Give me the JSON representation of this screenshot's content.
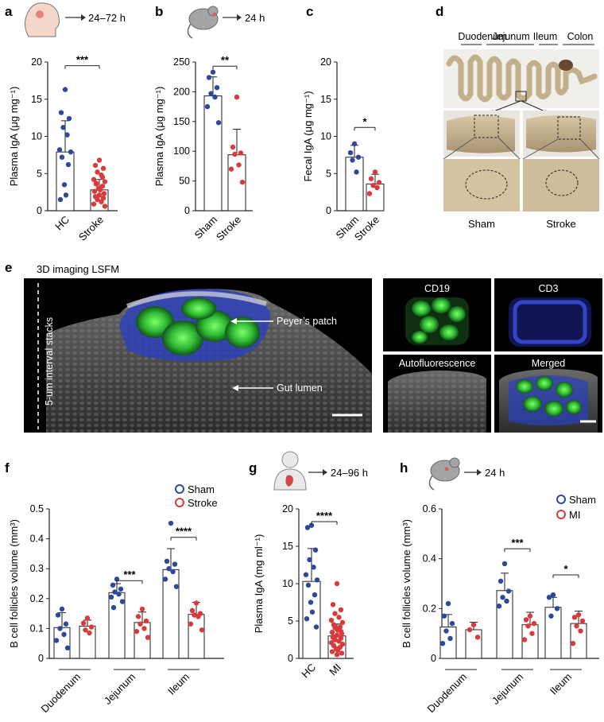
{
  "panel_letters": {
    "a": "a",
    "b": "b",
    "c": "c",
    "d": "d",
    "e": "e",
    "f": "f",
    "g": "g",
    "h": "h"
  },
  "headers": {
    "a": "24–72 h",
    "b": "24 h",
    "g": "24–96 h",
    "h": "24 h"
  },
  "colors": {
    "blue": "#2b4a9a",
    "red": "#d93a3a",
    "bar": "#222222"
  },
  "panel_d": {
    "segments": [
      "Duodenum",
      "Jejunum",
      "Ileum",
      "Colon"
    ],
    "sham": "Sham",
    "stroke": "Stroke"
  },
  "panel_e": {
    "main_title": "3D imaging LSFM",
    "stack_label": "5-um interval stacks",
    "pp_label": "Peyer’s patch",
    "lumen_label": "Gut lumen",
    "cd19": "CD19",
    "cd3": "CD3",
    "auto": "Autofluorescence",
    "merged": "Merged"
  },
  "legend_f": {
    "sham": "Sham",
    "stroke": "Stroke"
  },
  "legend_h": {
    "sham": "Sham",
    "mi": "MI"
  },
  "chart_data": [
    {
      "panel": "a",
      "type": "bar",
      "ylabel": "Plasma IgA (μg mg⁻¹)",
      "ylim": [
        0,
        20
      ],
      "yticks": [
        0,
        5,
        10,
        15,
        20
      ],
      "categories": [
        "HC",
        "Stroke"
      ],
      "means": [
        7.9,
        2.8
      ],
      "sd": [
        4.2,
        1.4
      ],
      "points": [
        [
          16.3,
          13.2,
          12.4,
          11.2,
          10.2,
          8.2,
          7.9,
          7.2,
          6.2,
          3.5,
          2.1,
          1.5
        ],
        [
          6.8,
          6.1,
          5.7,
          5.2,
          4.8,
          4.2,
          3.9,
          3.6,
          3.3,
          3.0,
          2.8,
          2.6,
          2.3,
          2.1,
          1.9,
          1.7,
          1.5,
          1.2,
          0.9,
          0.6,
          3.7,
          4.5
        ]
      ],
      "colors": [
        "blue",
        "red"
      ],
      "significance": [
        {
          "from": 0,
          "to": 1,
          "label": "***",
          "y": 19.5
        }
      ]
    },
    {
      "panel": "b",
      "type": "bar",
      "ylabel": "Plasma IgA (μg mg⁻¹)",
      "ylim": [
        0,
        250
      ],
      "yticks": [
        0,
        50,
        100,
        150,
        200,
        250
      ],
      "categories": [
        "Sham",
        "Stroke"
      ],
      "means": [
        193,
        94
      ],
      "sd": [
        32,
        43
      ],
      "points": [
        [
          233,
          224,
          207,
          197,
          191,
          175,
          148
        ],
        [
          191,
          107,
          97,
          95,
          77,
          70,
          48
        ]
      ],
      "colors": [
        "blue",
        "red"
      ],
      "significance": [
        {
          "from": 0,
          "to": 1,
          "label": "**",
          "y": 243
        }
      ]
    },
    {
      "panel": "c",
      "type": "bar",
      "ylabel": "Fecal IgA (μg mg⁻¹)",
      "ylim": [
        0,
        20
      ],
      "yticks": [
        0,
        5,
        10,
        15,
        20
      ],
      "categories": [
        "Sham",
        "Stroke"
      ],
      "means": [
        7.2,
        3.6
      ],
      "sd": [
        1.6,
        1.3
      ],
      "points": [
        [
          9.0,
          7.8,
          7.2,
          6.8,
          5.2
        ],
        [
          5.2,
          4.3,
          3.8,
          3.4,
          3.1,
          2.3
        ]
      ],
      "colors": [
        "blue",
        "red"
      ],
      "significance": [
        {
          "from": 0,
          "to": 1,
          "label": "*",
          "y": 11.2
        }
      ]
    },
    {
      "panel": "f",
      "type": "bar",
      "ylabel": "B cell follicles volume (mm³)",
      "ylim": [
        0,
        0.5
      ],
      "yticks": [
        0,
        0.1,
        0.2,
        0.3,
        0.4,
        0.5
      ],
      "groups": [
        "Duodenum",
        "Jejunum",
        "Ileum"
      ],
      "series": [
        {
          "name": "Sham",
          "color": "blue",
          "means": [
            0.103,
            0.22,
            0.297
          ],
          "sd": [
            0.05,
            0.03,
            0.07
          ],
          "points": [
            [
              0.165,
              0.145,
              0.115,
              0.1,
              0.08,
              0.06,
              0.035
            ],
            [
              0.265,
              0.245,
              0.232,
              0.222,
              0.215,
              0.205,
              0.19,
              0.17
            ],
            [
              0.452,
              0.325,
              0.315,
              0.3,
              0.29,
              0.265,
              0.24
            ]
          ]
        },
        {
          "name": "Stroke",
          "color": "red",
          "means": [
            0.108,
            0.12,
            0.147
          ],
          "sd": [
            0.02,
            0.035,
            0.04
          ],
          "points": [
            [
              0.135,
              0.118,
              0.105,
              0.095,
              0.085
            ],
            [
              0.165,
              0.14,
              0.125,
              0.115,
              0.1,
              0.09,
              0.07
            ],
            [
              0.185,
              0.16,
              0.15,
              0.145,
              0.14,
              0.115,
              0.095
            ]
          ]
        }
      ],
      "significance": [
        {
          "group": 1,
          "label": "***",
          "y": 0.26
        },
        {
          "group": 2,
          "label": "****",
          "y": 0.405
        }
      ]
    },
    {
      "panel": "g",
      "type": "bar",
      "ylabel": "Plasma IgA (mg ml⁻¹)",
      "ylim": [
        0,
        20
      ],
      "yticks": [
        0,
        5,
        10,
        15,
        20
      ],
      "categories": [
        "HC",
        "MI"
      ],
      "means": [
        10.3,
        3.0
      ],
      "sd": [
        4.4,
        1.6
      ],
      "points": [
        [
          17.8,
          17.5,
          14.5,
          13.2,
          12.2,
          11.2,
          10.5,
          9.8,
          8.5,
          7.5,
          6.2,
          5.3,
          4.2
        ],
        [
          10.0,
          7.2,
          6.5,
          6.0,
          5.5,
          5.1,
          4.8,
          4.5,
          4.2,
          4.0,
          3.8,
          3.5,
          3.3,
          3.1,
          2.9,
          2.7,
          2.5,
          2.3,
          2.1,
          1.9,
          1.7,
          1.5,
          1.3,
          1.1,
          0.9,
          0.7,
          0.5,
          2.8,
          3.6,
          4.1
        ]
      ],
      "colors": [
        "blue",
        "red"
      ],
      "significance": [
        {
          "from": 0,
          "to": 1,
          "label": "****",
          "y": 18.3
        }
      ]
    },
    {
      "panel": "h",
      "type": "bar",
      "ylabel": "B cell follicles volume (mm³)",
      "ylim": [
        0,
        0.6
      ],
      "yticks": [
        0,
        0.2,
        0.4,
        0.6
      ],
      "groups": [
        "Duodenum",
        "Jejunum",
        "Ileum"
      ],
      "series": [
        {
          "name": "Sham",
          "color": "blue",
          "means": [
            0.126,
            0.272,
            0.205
          ],
          "sd": [
            0.05,
            0.07,
            0.04
          ],
          "points": [
            [
              0.22,
              0.17,
              0.14,
              0.11,
              0.08,
              0.06
            ],
            [
              0.38,
              0.31,
              0.27,
              0.245,
              0.23,
              0.21
            ],
            [
              0.255,
              0.245,
              0.2,
              0.17
            ]
          ]
        },
        {
          "name": "MI",
          "color": "red",
          "means": [
            0.115,
            0.135,
            0.14
          ],
          "sd": [
            0.03,
            0.05,
            0.05
          ],
          "points": [
            [
              0.135,
              0.115,
              0.085
            ],
            [
              0.17,
              0.155,
              0.14,
              0.13,
              0.1,
              0.075
            ],
            [
              0.175,
              0.165,
              0.15,
              0.13,
              0.11,
              0.06
            ]
          ]
        }
      ],
      "significance": [
        {
          "group": 1,
          "label": "***",
          "y": 0.44
        },
        {
          "group": 2,
          "label": "*",
          "y": 0.335
        }
      ]
    }
  ]
}
